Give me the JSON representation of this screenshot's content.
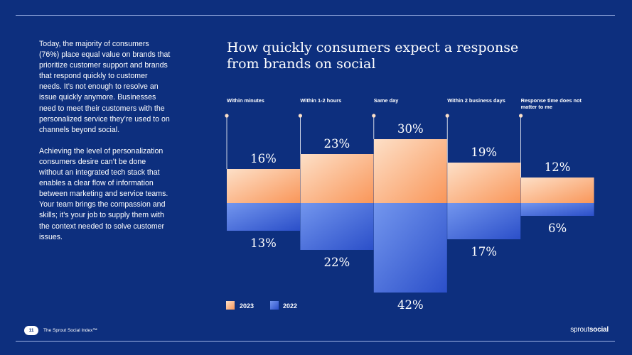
{
  "body": {
    "paragraph1": "Today, the majority of consumers (76%) place equal value on brands that prioritize customer support and brands that respond quickly to customer needs. It’s not enough to resolve an issue quickly anymore. Businesses need to meet their customers with the personalized service they’re used to on channels beyond social.",
    "paragraph2": "Achieving the level of personalization consumers desire can’t be done without an integrated tech stack that enables a clear flow of information between marketing and service teams. Your team brings the compassion and skills; it’s your job to supply them with the context needed to solve customer issues."
  },
  "chart_data": {
    "type": "bar",
    "title": "How quickly consumers expect a response from brands on social",
    "categories": [
      "Within minutes",
      "Within 1-2 hours",
      "Same day",
      "Within 2 business days",
      "Response time does not matter to me"
    ],
    "series": [
      {
        "name": "2023",
        "values": [
          16,
          23,
          30,
          19,
          12
        ],
        "value_labels": [
          "16%",
          "23%",
          "30%",
          "19%",
          "12%"
        ],
        "color": "#f9a46f"
      },
      {
        "name": "2022",
        "values": [
          13,
          22,
          42,
          17,
          6
        ],
        "value_labels": [
          "13%",
          "22%",
          "42%",
          "17%",
          "6%"
        ],
        "color": "#3a62d8"
      }
    ],
    "legend_position": "bottom-left",
    "grid": false
  },
  "footer": {
    "page_number": "11",
    "publication": "The Sprout Social Index™",
    "logo_part1": "sprout",
    "logo_part2": "social"
  },
  "colors": {
    "background": "#0d2f7e",
    "series_2023": "#f9a46f",
    "series_2022": "#3a62d8"
  }
}
